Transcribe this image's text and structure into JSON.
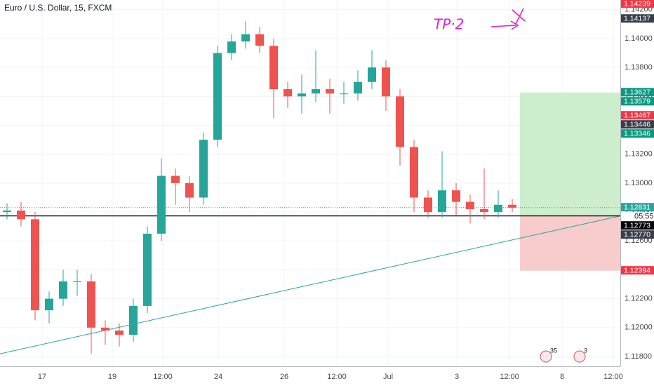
{
  "chart_data": {
    "type": "candlestick",
    "title": "Euro / U.S. Dollar, 15, FXCM",
    "annotation": "TP·2",
    "open": [
      1.128,
      1.1281,
      1.1275,
      1.1212,
      1.122,
      1.1232,
      1.1232,
      1.12,
      1.1198,
      1.1195,
      1.1215,
      1.1265,
      1.1305,
      1.13,
      1.129,
      1.133,
      1.139,
      1.1398,
      1.1403,
      1.1395,
      1.1365,
      1.136,
      1.1362,
      1.1365,
      1.1362,
      1.1362,
      1.137,
      1.138,
      1.136,
      1.1325,
      1.129,
      1.128,
      1.1295,
      1.1287,
      1.1282,
      1.128,
      1.1285
    ],
    "high": [
      1.1286,
      1.1287,
      1.128,
      1.1225,
      1.124,
      1.124,
      1.1237,
      1.1205,
      1.1203,
      1.122,
      1.127,
      1.1317,
      1.131,
      1.1305,
      1.1335,
      1.1395,
      1.1403,
      1.1412,
      1.1408,
      1.14,
      1.137,
      1.1375,
      1.1392,
      1.1372,
      1.137,
      1.1378,
      1.1392,
      1.1385,
      1.1365,
      1.133,
      1.1295,
      1.1322,
      1.13,
      1.1292,
      1.131,
      1.1295,
      1.1289
    ],
    "low": [
      1.1275,
      1.127,
      1.1205,
      1.1203,
      1.1215,
      1.1222,
      1.1182,
      1.1188,
      1.1187,
      1.119,
      1.121,
      1.126,
      1.1285,
      1.128,
      1.1285,
      1.1325,
      1.1385,
      1.1393,
      1.139,
      1.1345,
      1.1352,
      1.1348,
      1.1356,
      1.1348,
      1.1355,
      1.1357,
      1.1365,
      1.135,
      1.1312,
      1.128,
      1.1276,
      1.1276,
      1.1278,
      1.1272,
      1.1275,
      1.1276,
      1.128
    ],
    "close": [
      1.1281,
      1.1275,
      1.1212,
      1.122,
      1.1232,
      1.1232,
      1.12,
      1.1198,
      1.1195,
      1.1215,
      1.1265,
      1.1305,
      1.13,
      1.129,
      1.133,
      1.139,
      1.1398,
      1.1403,
      1.1395,
      1.1365,
      1.136,
      1.1362,
      1.1365,
      1.1362,
      1.1362,
      1.137,
      1.138,
      1.136,
      1.1325,
      1.129,
      1.128,
      1.1295,
      1.1287,
      1.1282,
      1.128,
      1.1285,
      1.1283
    ],
    "up_color": "#26a69a",
    "down_color": "#ef5350",
    "xlim": [
      0,
      44.2
    ],
    "xticks": [
      {
        "value": 3,
        "label": "17"
      },
      {
        "value": 8,
        "label": "19"
      },
      {
        "value": 11.6,
        "label": "12:00"
      },
      {
        "value": 15.55,
        "label": "24"
      },
      {
        "value": 20.25,
        "label": "26"
      },
      {
        "value": 24,
        "label": "12:00"
      },
      {
        "value": 27.65,
        "label": "Jul"
      },
      {
        "value": 32.55,
        "label": "3"
      },
      {
        "value": 36.3,
        "label": "12:00"
      },
      {
        "value": 40.05,
        "label": "8"
      },
      {
        "value": 43.7,
        "label": "12:00"
      }
    ],
    "ylim": [
      1.11732,
      1.14267
    ],
    "yticks": [
      {
        "value": 1.118,
        "label": "1.11800"
      },
      {
        "value": 1.12,
        "label": "1.12000"
      },
      {
        "value": 1.122,
        "label": "1.12200"
      },
      {
        "value": 1.124,
        "label": "1.12400"
      },
      {
        "value": 1.126,
        "label": "1.12600"
      },
      {
        "value": 1.128,
        "label": "1.12800"
      },
      {
        "value": 1.13,
        "label": "1.13000"
      },
      {
        "value": 1.132,
        "label": "1.13200"
      },
      {
        "value": 1.134,
        "label": "1.13400"
      },
      {
        "value": 1.136,
        "label": "1.13600"
      },
      {
        "value": 1.138,
        "label": "1.13800"
      },
      {
        "value": 1.14,
        "label": "1.14000"
      },
      {
        "value": 1.142,
        "label": "1.14200"
      }
    ],
    "grid": true,
    "position": {
      "start_x": 37.05,
      "entry": 1.12773,
      "target": 1.13627,
      "stop": 1.12394,
      "profit_color": "#c8ecc8",
      "loss_color": "#f7c6c6"
    },
    "hlines": [
      {
        "value": 1.12773,
        "color": "#000000",
        "style": "solid"
      },
      {
        "value": 1.12831,
        "color": "#26a69a",
        "style": "dotted"
      }
    ],
    "trendline": {
      "x": [
        0,
        44.2
      ],
      "y": [
        1.11819,
        1.12773
      ],
      "color": "#26a69a"
    },
    "countdown": "05:55",
    "price_labels": [
      {
        "value": 1.14239,
        "label": "1.14239",
        "color": "#f23645"
      },
      {
        "value": 1.14137,
        "label": "1.14137",
        "color": "#3a3e4a"
      },
      {
        "value": 1.13627,
        "label": "1.13627",
        "color": "#089981"
      },
      {
        "value": 1.13579,
        "label": "1.13579",
        "color": "#089981"
      },
      {
        "value": 1.13467,
        "label": "1.13467",
        "color": "#f23645"
      },
      {
        "value": 1.13446,
        "label": "1.13446",
        "color": "#3a3e4a"
      },
      {
        "value": 1.13346,
        "label": "1.13346",
        "color": "#089981"
      },
      {
        "value": 1.12831,
        "label": "1.12831",
        "color": "#26a69a"
      },
      {
        "value": 1.12773,
        "label": "1.12773",
        "color": "#000000"
      },
      {
        "value": 1.1277,
        "label": "1.12770",
        "color": "#3a3e4a"
      },
      {
        "value": 1.12394,
        "label": "1.12394",
        "color": "#f23645"
      }
    ],
    "events": [
      {
        "x": 38.9,
        "label": "35"
      },
      {
        "x": 41.3,
        "label": "3"
      }
    ]
  }
}
